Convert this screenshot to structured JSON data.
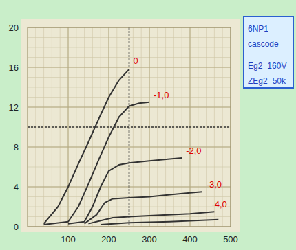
{
  "chart_data": {
    "type": "line",
    "title": "6NP1",
    "subtitle": "cascode",
    "annotations": [
      "Eg2=160V",
      "ZEg2=50k"
    ],
    "xlim": [
      0,
      500
    ],
    "xticks": [
      100,
      200,
      300,
      400,
      500
    ],
    "ylim": [
      0,
      20
    ],
    "yticks": [
      0,
      4,
      8,
      12,
      16,
      20
    ],
    "grid": true,
    "series": [
      {
        "name": "0",
        "color": "#333333",
        "x": [
          40,
          75,
          100,
          125,
          150,
          175,
          200,
          225,
          250
        ],
        "values": [
          0.3,
          2,
          4,
          6.3,
          8.5,
          10.8,
          13,
          14.7,
          15.8
        ]
      },
      {
        "name": "-1,0",
        "color": "#333333",
        "x": [
          40,
          100,
          125,
          150,
          175,
          200,
          225,
          250,
          275,
          300
        ],
        "values": [
          0.2,
          0.5,
          2,
          4.3,
          6.7,
          9,
          11,
          12.1,
          12.4,
          12.5
        ]
      },
      {
        "name": "-2,0",
        "color": "#333333",
        "x": [
          100,
          140,
          160,
          180,
          200,
          225,
          250,
          300,
          350,
          380
        ],
        "values": [
          0.3,
          0.5,
          2,
          4,
          5.6,
          6.2,
          6.4,
          6.6,
          6.8,
          6.9
        ]
      },
      {
        "name": "-3,0",
        "color": "#333333",
        "x": [
          140,
          170,
          190,
          210,
          250,
          300,
          350,
          400,
          430
        ],
        "values": [
          0.3,
          1.2,
          2.4,
          2.8,
          2.9,
          3.0,
          3.2,
          3.4,
          3.5
        ]
      },
      {
        "name": "-4,0",
        "color": "#333333",
        "x": [
          150,
          180,
          210,
          250,
          300,
          400,
          460
        ],
        "values": [
          0.3,
          0.6,
          0.9,
          1.0,
          1.1,
          1.3,
          1.5
        ]
      },
      {
        "color": "#333333",
        "x": [
          180,
          250,
          350,
          470
        ],
        "values": [
          0.2,
          0.4,
          0.5,
          0.7
        ]
      }
    ]
  }
}
